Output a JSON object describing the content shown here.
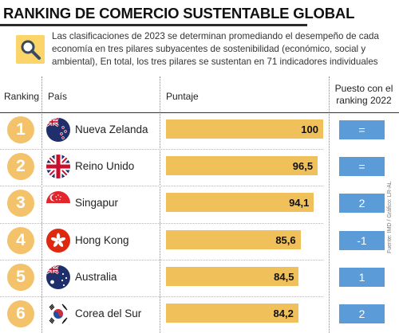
{
  "header": {
    "title": "RANKING DE COMERCIO SUSTENTABLE GLOBAL",
    "intro": "Las clasificaciones de 2023 se determinan promediando el desempeño de cada economía en tres pilares subyacentes de sostenibilidad (económico, social y ambiental), En total, los tres pilares se sustentan en 71 indicadores individuales",
    "icon": "magnifier-icon"
  },
  "columns": {
    "ranking": "Ranking",
    "pais": "País",
    "puntaje": "Puntaje",
    "puesto": "Puesto con el ranking 2022"
  },
  "colors": {
    "accent": "#f0c05a",
    "rank_circle": "#f3c26b",
    "badge": "#5b9bd8"
  },
  "chart_data": {
    "type": "bar",
    "title": "RANKING DE COMERCIO SUSTENTABLE GLOBAL",
    "xlabel": "Puntaje",
    "ylabel": "País",
    "xlim": [
      0,
      100
    ],
    "categories": [
      "Nueva Zelanda",
      "Reino Unido",
      "Singapur",
      "Hong Kong",
      "Australia",
      "Corea del Sur"
    ],
    "values": [
      100,
      96.5,
      94.1,
      85.6,
      84.5,
      84.2
    ],
    "rows": [
      {
        "rank": "1",
        "country": "Nueva Zelanda",
        "score": 100,
        "score_label": "100",
        "change": "=",
        "flag": "new-zealand-flag-icon"
      },
      {
        "rank": "2",
        "country": "Reino Unido",
        "score": 96.5,
        "score_label": "96,5",
        "change": "=",
        "flag": "united-kingdom-flag-icon"
      },
      {
        "rank": "3",
        "country": "Singapur",
        "score": 94.1,
        "score_label": "94,1",
        "change": "2",
        "flag": "singapore-flag-icon"
      },
      {
        "rank": "4",
        "country": "Hong Kong",
        "score": 85.6,
        "score_label": "85,6",
        "change": "-1",
        "flag": "hong-kong-flag-icon"
      },
      {
        "rank": "5",
        "country": "Australia",
        "score": 84.5,
        "score_label": "84,5",
        "change": "1",
        "flag": "australia-flag-icon"
      },
      {
        "rank": "6",
        "country": "Corea del Sur",
        "score": 84.2,
        "score_label": "84,2",
        "change": "2",
        "flag": "south-korea-flag-icon"
      }
    ]
  },
  "footer": {
    "source": "Fuente: IMD / Gráfico: LR-AL"
  }
}
